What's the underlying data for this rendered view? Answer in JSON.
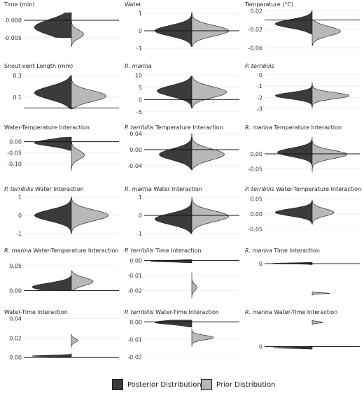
{
  "colors": {
    "posterior": "#3b3b3b",
    "prior": "#b8b8b8",
    "outline": "#111111",
    "grid": "#e9e9e9",
    "axis_text": "#333333"
  },
  "legend": {
    "posterior_label": "Posterior Distribution",
    "prior_label": "Prior Distribution"
  },
  "chart_data": [
    {
      "type": "split-violin",
      "title_parts": [
        {
          "t": "Time (min)",
          "i": false
        }
      ],
      "ylim": [
        -0.009,
        0.003
      ],
      "yticks": [
        0.0,
        -0.005
      ],
      "tick_labels": [
        "0.000",
        "-0.005"
      ],
      "hline": 0.0,
      "posterior": {
        "center": -0.002,
        "spread": 0.0022,
        "min": -0.005,
        "max": 0.0022,
        "width": 0.85
      },
      "prior": {
        "center": -0.004,
        "spread": 0.0012,
        "min": -0.0075,
        "max": 0.0,
        "width": 0.28
      }
    },
    {
      "type": "split-violin",
      "title_parts": [
        {
          "t": "Water",
          "i": false
        }
      ],
      "ylim": [
        -1.2,
        1.2
      ],
      "yticks": [
        1,
        0,
        -1
      ],
      "tick_labels": [
        "1",
        "0",
        "-1"
      ],
      "hline": 0,
      "posterior": {
        "center": 0.0,
        "spread": 0.3,
        "min": -0.9,
        "max": 1.05,
        "width": 0.85
      },
      "prior": {
        "center": 0.0,
        "spread": 0.3,
        "min": -0.9,
        "max": 1.05,
        "width": 0.85
      }
    },
    {
      "type": "split-violin",
      "title_parts": [
        {
          "t": "Temperature (°C)",
          "i": false
        }
      ],
      "ylim": [
        -0.068,
        0.022
      ],
      "yticks": [
        0.02,
        -0.02,
        -0.06
      ],
      "tick_labels": [
        "0.02",
        "-0.02",
        "-0.06"
      ],
      "hline": 0,
      "posterior": {
        "center": -0.008,
        "spread": 0.009,
        "min": -0.03,
        "max": 0.02,
        "width": 0.85
      },
      "prior": {
        "center": -0.024,
        "spread": 0.01,
        "min": -0.055,
        "max": 0.0,
        "width": 0.65
      }
    },
    {
      "type": "split-violin",
      "title_parts": [
        {
          "t": "Snout-vent Length (mm)",
          "i": false
        }
      ],
      "ylim": [
        -0.05,
        0.34
      ],
      "yticks": [
        0.3,
        0.1
      ],
      "tick_labels": [
        "0.3",
        "0.1"
      ],
      "hline": 0,
      "posterior": {
        "center": 0.14,
        "spread": 0.06,
        "min": -0.01,
        "max": 0.3,
        "width": 0.85
      },
      "prior": {
        "center": 0.11,
        "spread": 0.05,
        "min": -0.01,
        "max": 0.3,
        "width": 0.8
      }
    },
    {
      "type": "split-violin",
      "title_parts": [
        {
          "t": "R. marina",
          "i": true
        }
      ],
      "ylim": [
        -5.6,
        11.5
      ],
      "yticks": [
        10,
        5,
        0,
        -5
      ],
      "tick_labels": [
        "10",
        "5",
        "0",
        "-5"
      ],
      "hline": 0,
      "posterior": {
        "center": 3.5,
        "spread": 2.2,
        "min": -3.5,
        "max": 9.5,
        "width": 0.8
      },
      "prior": {
        "center": 3.0,
        "spread": 2.2,
        "min": -3.5,
        "max": 9.5,
        "width": 0.8
      }
    },
    {
      "type": "split-violin",
      "title_parts": [
        {
          "t": "P. terribilis",
          "i": true
        }
      ],
      "ylim": [
        -3.4,
        0.3
      ],
      "yticks": [
        0,
        -1,
        -2,
        -3
      ],
      "tick_labels": [
        "0",
        "-1",
        "-2",
        "-3"
      ],
      "hline": null,
      "posterior": {
        "center": -1.85,
        "spread": 0.28,
        "min": -2.9,
        "max": -0.7,
        "width": 0.85
      },
      "prior": {
        "center": -1.85,
        "spread": 0.28,
        "min": -2.9,
        "max": -0.7,
        "width": 0.85
      }
    },
    {
      "type": "split-violin",
      "title_parts": [
        {
          "t": "Water-Temperature Interaction",
          "i": false
        }
      ],
      "ylim": [
        -0.15,
        0.04
      ],
      "yticks": [
        0.0,
        -0.05,
        -0.1
      ],
      "tick_labels": [
        "0.00",
        "-0.05",
        "-0.10"
      ],
      "hline": 0,
      "posterior": {
        "center": -0.005,
        "spread": 0.015,
        "min": -0.04,
        "max": 0.02,
        "width": 0.85
      },
      "prior": {
        "center": -0.06,
        "spread": 0.02,
        "min": -0.13,
        "max": 0.0,
        "width": 0.3
      }
    },
    {
      "type": "split-violin",
      "title_parts": [
        {
          "t": "P. terribilis",
          "i": true
        },
        {
          "t": " Temperature Interaction",
          "i": false
        }
      ],
      "ylim": [
        -0.063,
        0.042
      ],
      "yticks": [
        0.04,
        0.0,
        -0.04
      ],
      "tick_labels": [
        "0.04",
        "0.00",
        "-0.04"
      ],
      "hline": 0,
      "posterior": {
        "center": -0.012,
        "spread": 0.014,
        "min": -0.05,
        "max": 0.04,
        "width": 0.75
      },
      "prior": {
        "center": -0.012,
        "spread": 0.014,
        "min": -0.05,
        "max": 0.04,
        "width": 0.75
      }
    },
    {
      "type": "split-violin",
      "title_parts": [
        {
          "t": "R. marina",
          "i": true
        },
        {
          "t": " Temperature Interaction",
          "i": false
        }
      ],
      "ylim": [
        -0.07,
        0.07
      ],
      "yticks": [
        0.0,
        -0.05
      ],
      "tick_labels": [
        "0.00",
        "-0.05"
      ],
      "hline": 0,
      "posterior": {
        "center": 0.005,
        "spread": 0.014,
        "min": -0.04,
        "max": 0.055,
        "width": 0.8
      },
      "prior": {
        "center": -0.002,
        "spread": 0.014,
        "min": -0.06,
        "max": 0.04,
        "width": 0.8
      }
    },
    {
      "type": "split-violin",
      "title_parts": [
        {
          "t": "P. terribilis",
          "i": true
        },
        {
          "t": " Water Interaction",
          "i": false
        }
      ],
      "ylim": [
        -1.15,
        1.15
      ],
      "yticks": [
        1,
        0,
        -1
      ],
      "tick_labels": [
        "1",
        "0",
        "-1"
      ],
      "hline": null,
      "posterior": {
        "center": 0.0,
        "spread": 0.3,
        "min": -1.0,
        "max": 1.0,
        "width": 0.85
      },
      "prior": {
        "center": 0.0,
        "spread": 0.3,
        "min": -1.0,
        "max": 1.0,
        "width": 0.85
      }
    },
    {
      "type": "split-violin",
      "title_parts": [
        {
          "t": "R. marina",
          "i": true
        },
        {
          "t": " Water Interaction",
          "i": false
        }
      ],
      "ylim": [
        -1.15,
        1.15
      ],
      "yticks": [
        1,
        0,
        -1
      ],
      "tick_labels": [
        "1",
        "0",
        "-1"
      ],
      "hline": 0,
      "posterior": {
        "center": -0.2,
        "spread": 0.3,
        "min": -1.0,
        "max": 0.9,
        "width": 0.85
      },
      "prior": {
        "center": -0.05,
        "spread": 0.3,
        "min": -0.9,
        "max": 1.0,
        "width": 0.85
      }
    },
    {
      "type": "split-violin",
      "title_parts": [
        {
          "t": "P. terribilis",
          "i": true
        },
        {
          "t": " Water-Temperature Interaction",
          "i": false
        }
      ],
      "ylim": [
        -0.075,
        0.065
      ],
      "yticks": [
        0.05,
        0.0,
        -0.05
      ],
      "tick_labels": [
        "0.05",
        "0.00",
        "-0.05"
      ],
      "hline": null,
      "posterior": {
        "center": 0.005,
        "spread": 0.012,
        "min": -0.035,
        "max": 0.045,
        "width": 0.85
      },
      "prior": {
        "center": 0.005,
        "spread": 0.012,
        "min": -0.035,
        "max": 0.045,
        "width": 0.5
      }
    },
    {
      "type": "split-violin",
      "title_parts": [
        {
          "t": "R. marina",
          "i": true
        },
        {
          "t": " Water-Temperature Interaction",
          "i": false
        }
      ],
      "ylim": [
        -0.015,
        0.07
      ],
      "yticks": [
        0.05,
        0.0
      ],
      "tick_labels": [
        "0.05",
        "0.00"
      ],
      "hline": 0,
      "posterior": {
        "center": 0.007,
        "spread": 0.008,
        "min": 0.0,
        "max": 0.03,
        "width": 0.9
      },
      "prior": {
        "center": 0.018,
        "spread": 0.008,
        "min": 0.0,
        "max": 0.04,
        "width": 0.5
      }
    },
    {
      "type": "split-violin",
      "title_parts": [
        {
          "t": "P. terribilis",
          "i": true
        },
        {
          "t": " Time Interaction",
          "i": false
        }
      ],
      "ylim": [
        -0.025,
        0.003
      ],
      "yticks": [
        0.0,
        -0.01,
        -0.02
      ],
      "tick_labels": [
        "0.00",
        "-0.01",
        "-0.02"
      ],
      "hline": 0,
      "posterior": {
        "center": -0.0005,
        "spread": 0.0005,
        "min": -0.0015,
        "max": 0.0005,
        "width": 0.95
      },
      "prior": {
        "center": -0.018,
        "spread": 0.002,
        "min": -0.025,
        "max": -0.008,
        "width": 0.12
      }
    },
    {
      "type": "split-violin",
      "title_parts": [
        {
          "t": "R. marina",
          "i": true
        },
        {
          "t": " Time Interaction",
          "i": false
        }
      ],
      "ylim": [
        -0.09,
        0.02
      ],
      "yticks": [
        0.0
      ],
      "tick_labels": [
        "0"
      ],
      "hline": 0,
      "posterior": {
        "center": 0.0005,
        "spread": 0.0012,
        "min": -0.003,
        "max": 0.003,
        "width": 0.9
      },
      "prior": {
        "center": -0.078,
        "spread": 0.0014,
        "min": -0.082,
        "max": -0.074,
        "width": 0.4
      }
    },
    {
      "type": "split-violin",
      "title_parts": [
        {
          "t": "Water-Time Interaction",
          "i": false
        }
      ],
      "ylim": [
        -0.002,
        0.041
      ],
      "yticks": [
        0.04,
        0.02,
        0.0
      ],
      "tick_labels": [
        "0.04",
        "0.02",
        "0.00"
      ],
      "hline": 0,
      "posterior": {
        "center": 0.0015,
        "spread": 0.0007,
        "min": 0.0,
        "max": 0.004,
        "width": 0.9
      },
      "prior": {
        "center": 0.0175,
        "spread": 0.002,
        "min": 0.01,
        "max": 0.024,
        "width": 0.15
      }
    },
    {
      "type": "split-violin",
      "title_parts": [
        {
          "t": "P. terribilis",
          "i": true
        },
        {
          "t": " Water-Time Interaction",
          "i": false
        }
      ],
      "ylim": [
        -0.0215,
        0.0025
      ],
      "yticks": [
        0.0,
        -0.01,
        -0.02
      ],
      "tick_labels": [
        "0.00",
        "-0.01",
        "-0.02"
      ],
      "hline": 0,
      "posterior": {
        "center": -0.0003,
        "spread": 0.0012,
        "min": -0.003,
        "max": 0.001,
        "width": 0.85
      },
      "prior": {
        "center": -0.009,
        "spread": 0.0013,
        "min": -0.014,
        "max": -0.004,
        "width": 0.5
      }
    },
    {
      "type": "split-violin",
      "title_parts": [
        {
          "t": "R. marina",
          "i": true
        },
        {
          "t": " Water-Time Interaction",
          "i": false
        }
      ],
      "ylim": [
        -0.02,
        0.045
      ],
      "yticks": [
        0.0
      ],
      "tick_labels": [
        "0"
      ],
      "hline": 0,
      "posterior": {
        "center": -0.002,
        "spread": 0.0008,
        "min": -0.004,
        "max": 0.0,
        "width": 0.9
      },
      "prior": {
        "center": 0.0375,
        "spread": 0.0012,
        "min": 0.034,
        "max": 0.041,
        "width": 0.25
      }
    }
  ]
}
